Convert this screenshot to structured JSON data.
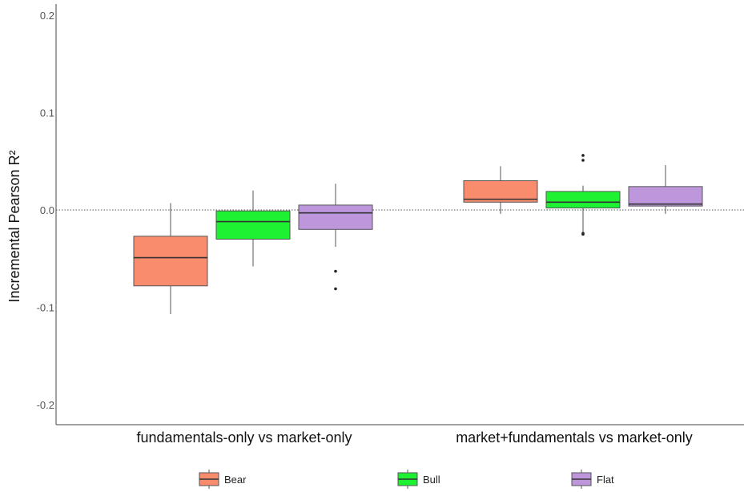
{
  "chart_data": {
    "type": "box",
    "ylabel": "Incremental Pearson R²",
    "xlabel": "",
    "ylim": [
      -0.22,
      0.21
    ],
    "yticks": [
      -0.2,
      -0.1,
      0.0,
      0.1,
      0.2
    ],
    "ytick_labels": [
      "-0.2",
      "-0.1",
      "0.0",
      "0.1",
      "0.2"
    ],
    "reference_line": {
      "y": 0.0,
      "style": "dotted"
    },
    "grid": false,
    "legend_position": "bottom",
    "categories": [
      "fundamentals-only vs market-only",
      "market+fundamentals vs market-only"
    ],
    "series": [
      {
        "name": "Bear",
        "color": "#FA8C6E",
        "boxes": [
          {
            "whisker_low": -0.107,
            "q1": -0.078,
            "median": -0.049,
            "q3": -0.027,
            "whisker_high": 0.007,
            "outliers": []
          },
          {
            "whisker_low": -0.004,
            "q1": 0.008,
            "median": 0.011,
            "q3": 0.03,
            "whisker_high": 0.045,
            "outliers": []
          }
        ]
      },
      {
        "name": "Bull",
        "color": "#1EF032",
        "boxes": [
          {
            "whisker_low": -0.058,
            "q1": -0.03,
            "median": -0.012,
            "q3": -0.001,
            "whisker_high": 0.02,
            "outliers": []
          },
          {
            "whisker_low": -0.025,
            "q1": 0.002,
            "median": 0.008,
            "q3": 0.019,
            "whisker_high": 0.025,
            "outliers": [
              0.056,
              0.051,
              -0.024,
              -0.025
            ]
          }
        ]
      },
      {
        "name": "Flat",
        "color": "#BE96DC",
        "boxes": [
          {
            "whisker_low": -0.038,
            "q1": -0.02,
            "median": -0.003,
            "q3": 0.005,
            "whisker_high": 0.027,
            "outliers": [
              -0.063,
              -0.081
            ]
          },
          {
            "whisker_low": -0.004,
            "q1": 0.004,
            "median": 0.006,
            "q3": 0.024,
            "whisker_high": 0.046,
            "outliers": []
          }
        ]
      }
    ]
  }
}
